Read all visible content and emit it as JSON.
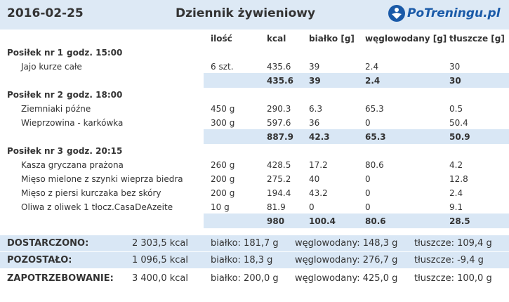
{
  "header": {
    "date": "2016-02-25",
    "title": "Dziennik żywieniowy",
    "logo": "PoTreningu.pl"
  },
  "columns": [
    "ilość",
    "kcal",
    "białko [g]",
    "węglowodany [g]",
    "tłuszcze [g]"
  ],
  "meals": [
    {
      "name": "Posiłek nr 1",
      "time": "godz. 15:00",
      "items": [
        {
          "name": "Jajo kurze całe",
          "cells": [
            "6 szt.",
            "435.6",
            "39",
            "2.4",
            "30"
          ]
        }
      ],
      "totals": [
        "435.6",
        "39",
        "2.4",
        "30"
      ]
    },
    {
      "name": "Posiłek nr 2",
      "time": "godz. 18:00",
      "items": [
        {
          "name": "Ziemniaki późne",
          "cells": [
            "450 g",
            "290.3",
            "6.3",
            "65.3",
            "0.5"
          ]
        },
        {
          "name": "Wieprzowina - karkówka",
          "cells": [
            "300 g",
            "597.6",
            "36",
            "0",
            "50.4"
          ]
        }
      ],
      "totals": [
        "887.9",
        "42.3",
        "65.3",
        "50.9"
      ]
    },
    {
      "name": "Posiłek nr 3",
      "time": "godz. 20:15",
      "items": [
        {
          "name": "Kasza gryczana prażona",
          "cells": [
            "260 g",
            "428.5",
            "17.2",
            "80.6",
            "4.2"
          ]
        },
        {
          "name": "Mięso mielone z szynki wieprza biedra",
          "cells": [
            "200 g",
            "275.2",
            "40",
            "0",
            "12.8"
          ]
        },
        {
          "name": "Mięso z piersi kurczaka bez skóry",
          "cells": [
            "200 g",
            "194.4",
            "43.2",
            "0",
            "2.4"
          ]
        },
        {
          "name": "Oliwa z oliwek 1 tłocz.CasaDeAzeite",
          "cells": [
            "10 g",
            "81.9",
            "0",
            "0",
            "9.1"
          ]
        }
      ],
      "totals": [
        "980",
        "100.4",
        "80.6",
        "28.5"
      ]
    }
  ],
  "summary": [
    {
      "label": "DOSTARCZONO:",
      "cells": [
        "2 303,5 kcal",
        "białko: 181,7 g",
        "węglowodany: 148,3 g",
        "tłuszcze: 109,4 g"
      ]
    },
    {
      "label": "POZOSTAŁO:",
      "cells": [
        "1 096,5 kcal",
        "białko: 18,3 g",
        "węglowodany: 276,7 g",
        "tłuszcze: -9,4 g"
      ]
    },
    {
      "label": "ZAPOTRZEBOWANIE:",
      "cells": [
        "3 400,0 kcal",
        "białko: 200,0 g",
        "węglowodany: 425,0 g",
        "tłuszcze: 100,0 g"
      ]
    }
  ]
}
